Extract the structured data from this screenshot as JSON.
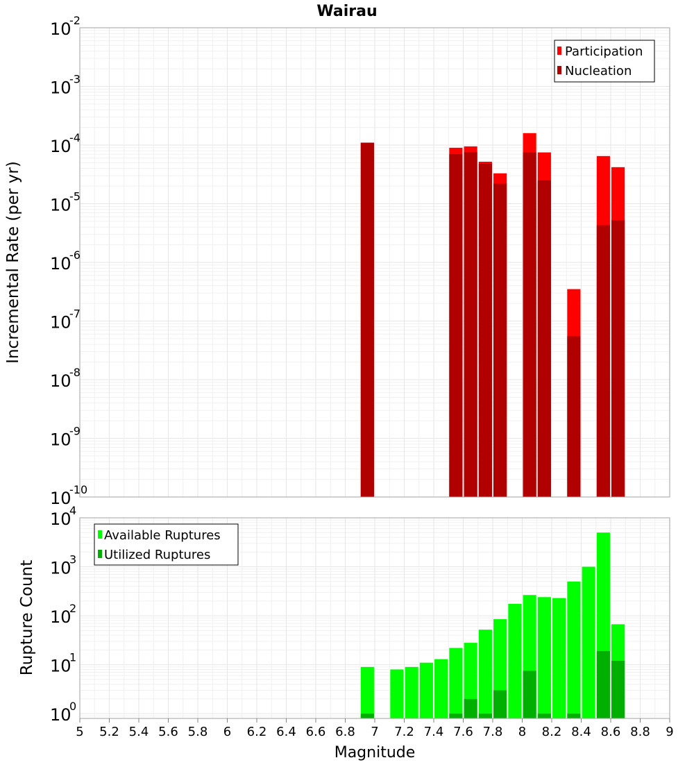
{
  "title": "Wairau",
  "top_chart": {
    "ylabel": "Incremental Rate (per yr)",
    "y_ticks": [
      {
        "base": "10",
        "exp": "-10"
      },
      {
        "base": "10",
        "exp": "-9"
      },
      {
        "base": "10",
        "exp": "-8"
      },
      {
        "base": "10",
        "exp": "-7"
      },
      {
        "base": "10",
        "exp": "-6"
      },
      {
        "base": "10",
        "exp": "-5"
      },
      {
        "base": "10",
        "exp": "-4"
      },
      {
        "base": "10",
        "exp": "-3"
      },
      {
        "base": "10",
        "exp": "-2"
      }
    ],
    "legend": {
      "participation": "Participation",
      "nucleation": "Nucleation"
    }
  },
  "bottom_chart": {
    "ylabel": "Rupture Count",
    "y_ticks": [
      {
        "base": "10",
        "exp": "0"
      },
      {
        "base": "10",
        "exp": "1"
      },
      {
        "base": "10",
        "exp": "2"
      },
      {
        "base": "10",
        "exp": "3"
      },
      {
        "base": "10",
        "exp": "4"
      }
    ],
    "legend": {
      "available": "Available Ruptures",
      "utilized": "Utilized Ruptures"
    }
  },
  "xaxis": {
    "label": "Magnitude",
    "ticks": [
      "5",
      "5.2",
      "5.4",
      "5.6",
      "5.8",
      "6",
      "6.2",
      "6.4",
      "6.6",
      "6.8",
      "7",
      "7.2",
      "7.4",
      "7.6",
      "7.8",
      "8",
      "8.2",
      "8.4",
      "8.6",
      "8.8",
      "9"
    ]
  },
  "colors": {
    "participation": "#ff0000",
    "nucleation": "#b00000",
    "available": "#00ff00",
    "utilized": "#00b000"
  },
  "chart_data": [
    {
      "type": "bar",
      "title": "Wairau",
      "xlabel": "Magnitude",
      "ylabel": "Incremental Rate (per yr)",
      "yscale": "log",
      "xlim": [
        5,
        9
      ],
      "ylim": [
        1e-10,
        0.01
      ],
      "x": [
        6.95,
        7.55,
        7.65,
        7.75,
        7.85,
        8.05,
        8.15,
        8.35,
        8.55,
        8.65
      ],
      "series": [
        {
          "name": "Participation",
          "values": [
            0.00011,
            9e-05,
            9.5e-05,
            5.2e-05,
            3.3e-05,
            0.00016,
            7.5e-05,
            3.5e-07,
            6.5e-05,
            4.2e-05
          ]
        },
        {
          "name": "Nucleation",
          "values": [
            0.00011,
            7e-05,
            7.6e-05,
            4.8e-05,
            2.2e-05,
            7.5e-05,
            2.5e-05,
            5.5e-08,
            4.3e-06,
            5.2e-06
          ]
        }
      ],
      "legend": "top-right",
      "grid": true
    },
    {
      "type": "bar",
      "xlabel": "Magnitude",
      "ylabel": "Rupture Count",
      "yscale": "log",
      "xlim": [
        5,
        9
      ],
      "ylim": [
        0.8,
        10000
      ],
      "x": [
        6.95,
        7.15,
        7.25,
        7.35,
        7.45,
        7.55,
        7.65,
        7.75,
        7.85,
        7.95,
        8.05,
        8.15,
        8.25,
        8.35,
        8.45,
        8.55,
        8.65
      ],
      "series": [
        {
          "name": "Available Ruptures",
          "values": [
            9,
            8,
            9,
            11,
            13,
            22,
            28,
            52,
            85,
            175,
            265,
            240,
            230,
            500,
            1000,
            5000,
            67
          ]
        },
        {
          "name": "Utilized Ruptures",
          "values": [
            1,
            0,
            0,
            0,
            0,
            1,
            2,
            1,
            3,
            0,
            7.5,
            1,
            0,
            1,
            0,
            19,
            12
          ]
        }
      ],
      "legend": "top-left",
      "grid": true
    }
  ]
}
